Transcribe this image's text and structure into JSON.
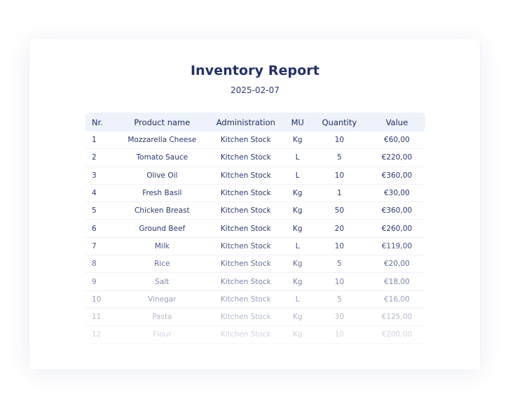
{
  "report": {
    "title": "Inventory Report",
    "date": "2025-02-07"
  },
  "table": {
    "headers": {
      "nr": "Nr.",
      "product": "Product name",
      "administration": "Administration",
      "mu": "MU",
      "quantity": "Quantity",
      "value": "Value"
    },
    "rows": [
      {
        "nr": "1",
        "product": "Mozzarella Cheese",
        "administration": "Kitchen Stock",
        "mu": "Kg",
        "quantity": "10",
        "value": "€60,00"
      },
      {
        "nr": "2",
        "product": "Tomato Sauce",
        "administration": "Kitchen Stock",
        "mu": "L",
        "quantity": "5",
        "value": "€220,00"
      },
      {
        "nr": "3",
        "product": "Olive Oil",
        "administration": "Kitchen Stock",
        "mu": "L",
        "quantity": "10",
        "value": "€360,00"
      },
      {
        "nr": "4",
        "product": "Fresh Basil",
        "administration": "Kitchen Stock",
        "mu": "Kg",
        "quantity": "1",
        "value": "€30,00"
      },
      {
        "nr": "5",
        "product": "Chicken Breast",
        "administration": "Kitchen Stock",
        "mu": "Kg",
        "quantity": "50",
        "value": "€360,00"
      },
      {
        "nr": "6",
        "product": "Ground Beef",
        "administration": "Kitchen Stock",
        "mu": "Kg",
        "quantity": "20",
        "value": "€260,00"
      },
      {
        "nr": "7",
        "product": "Milk",
        "administration": "Kitchen Stock",
        "mu": "L",
        "quantity": "10",
        "value": "€119,00"
      },
      {
        "nr": "8",
        "product": "Rice",
        "administration": "Kitchen Stock",
        "mu": "Kg",
        "quantity": "5",
        "value": "€20,00"
      },
      {
        "nr": "9",
        "product": "Salt",
        "administration": "Kitchen Stock",
        "mu": "Kg",
        "quantity": "10",
        "value": "€18,00"
      },
      {
        "nr": "10",
        "product": "Vinegar",
        "administration": "Kitchen Stock",
        "mu": "L",
        "quantity": "5",
        "value": "€16,00"
      },
      {
        "nr": "11",
        "product": "Pasta",
        "administration": "Kitchen Stock",
        "mu": "Kg",
        "quantity": "30",
        "value": "€125,00"
      },
      {
        "nr": "12",
        "product": "Flour",
        "administration": "Kitchen Stock",
        "mu": "Kg",
        "quantity": "10",
        "value": "€200,00"
      }
    ]
  },
  "colors": {
    "title": "#22306b",
    "text": "#2a3770",
    "header_bg": "#eef2fb"
  }
}
